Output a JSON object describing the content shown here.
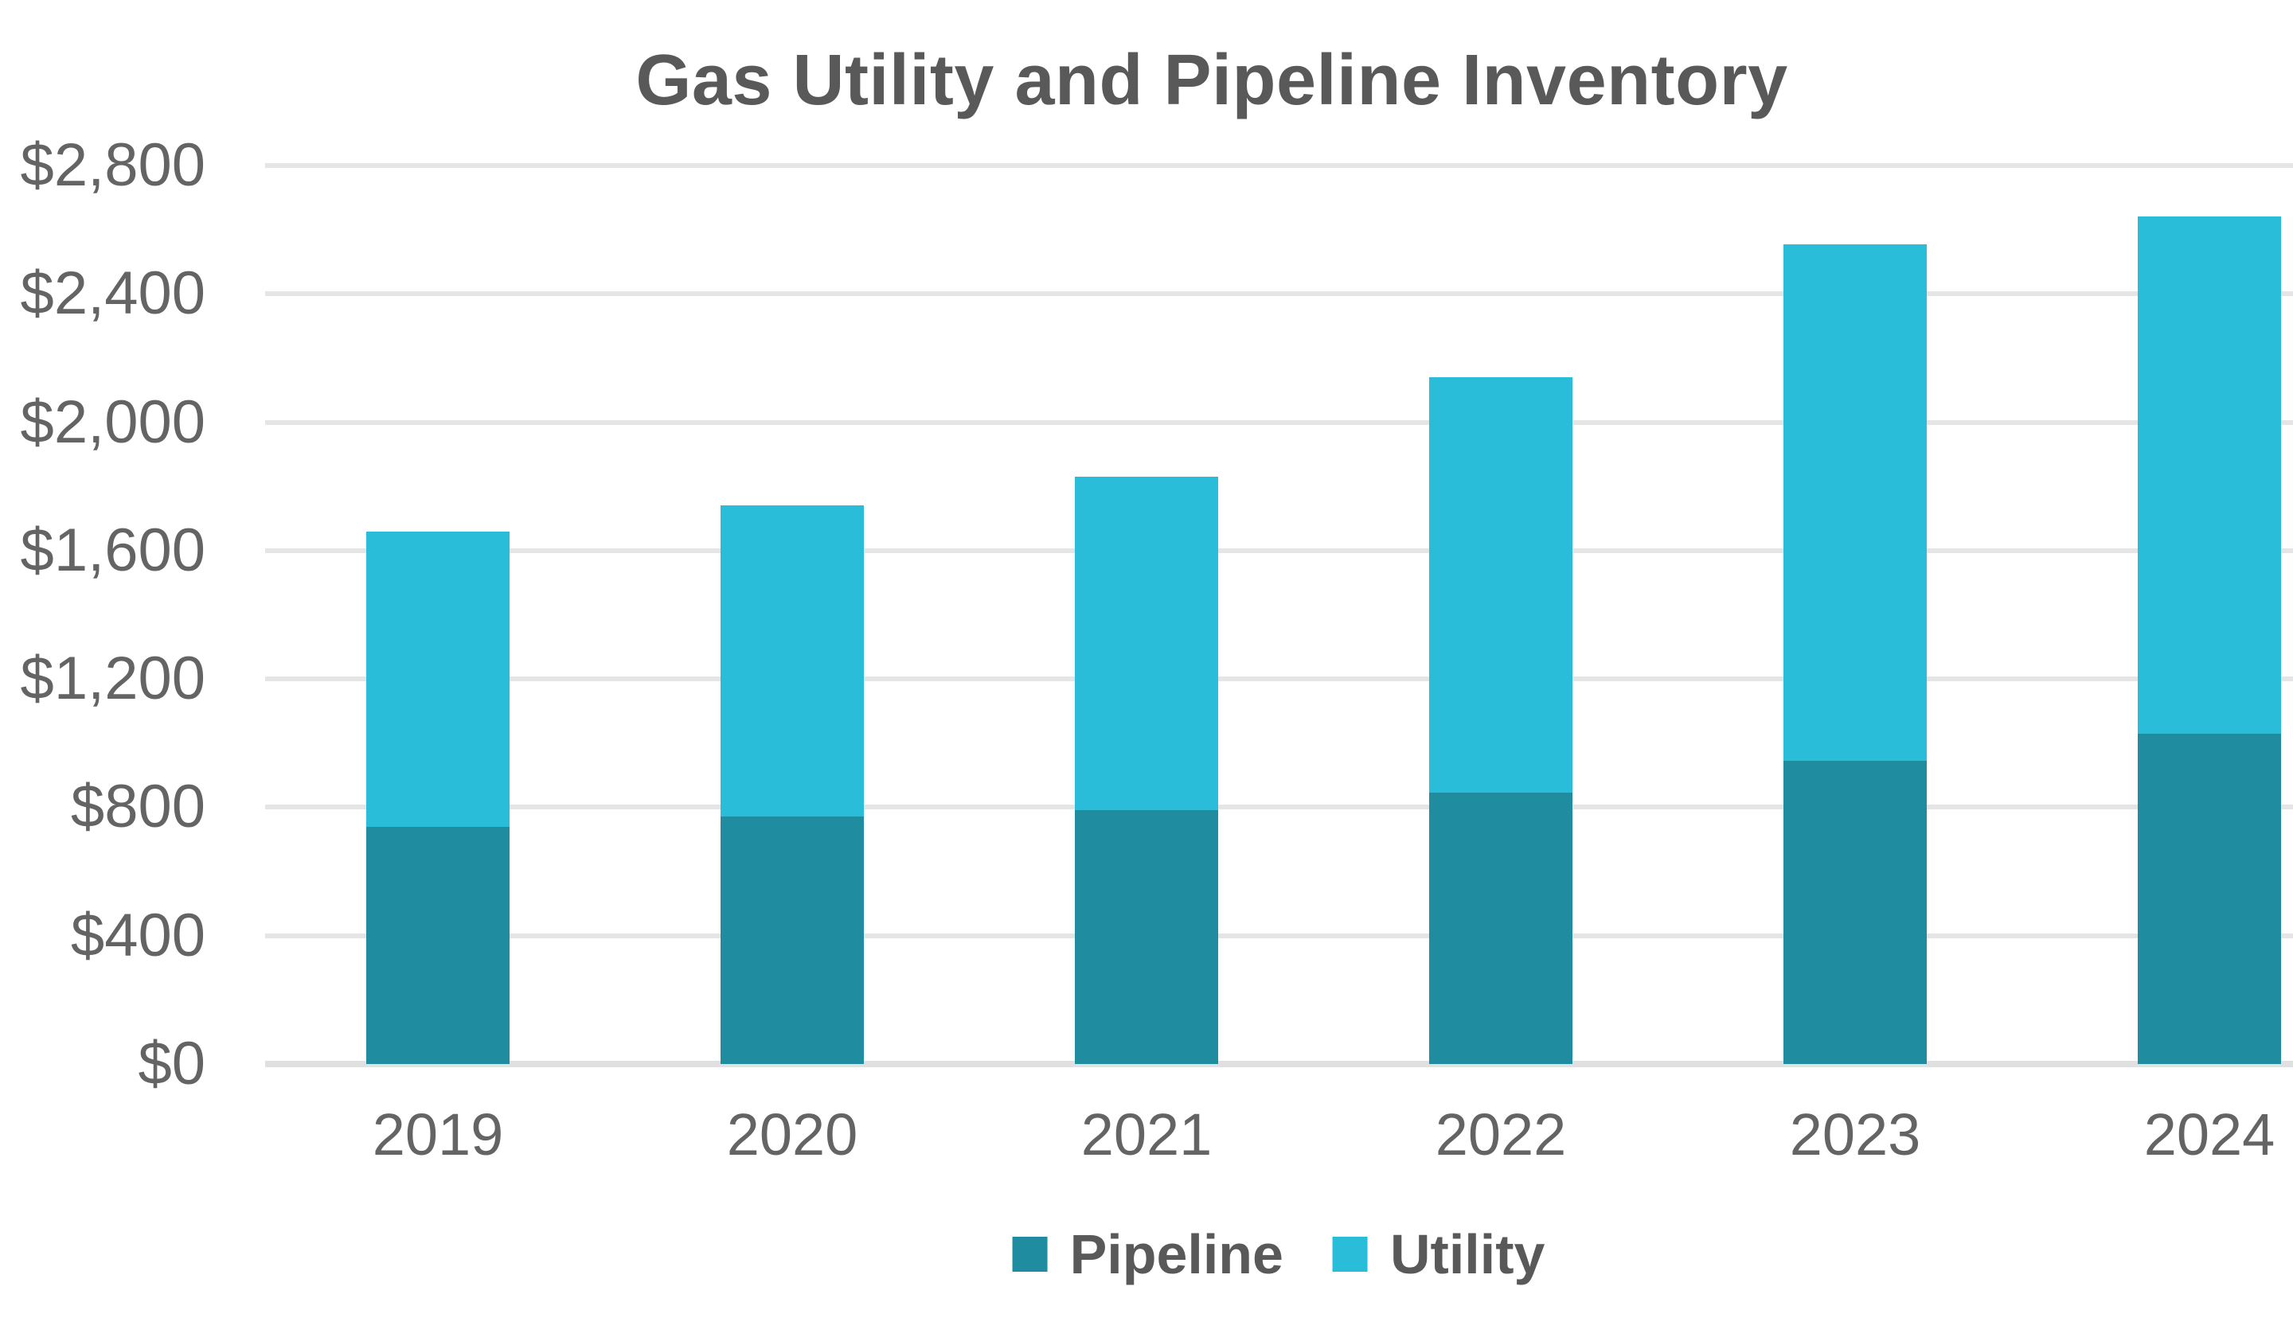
{
  "chart_data": {
    "type": "bar",
    "stacked": true,
    "title": "Gas Utility and Pipeline Inventory",
    "categories": [
      "2019",
      "2020",
      "2021",
      "2022",
      "2023",
      "2024"
    ],
    "series": [
      {
        "name": "Pipeline",
        "color": "#1F8CA0",
        "values": [
          740,
          770,
          790,
          845,
          945,
          1030
        ]
      },
      {
        "name": "Utility",
        "color": "#29BDD9",
        "values": [
          920,
          970,
          1040,
          1295,
          1610,
          1610
        ]
      }
    ],
    "totals": [
      1660,
      1740,
      1830,
      2140,
      2555,
      2640
    ],
    "xlabel": "",
    "ylabel": "",
    "ylim": [
      0,
      2800
    ],
    "ytick_step": 400,
    "yticks": [
      {
        "value": 0,
        "label": "$0"
      },
      {
        "value": 400,
        "label": "$400"
      },
      {
        "value": 800,
        "label": "$800"
      },
      {
        "value": 1200,
        "label": "$1,200"
      },
      {
        "value": 1600,
        "label": "$1,600"
      },
      {
        "value": 2000,
        "label": "$2,000"
      },
      {
        "value": 2400,
        "label": "$2,400"
      },
      {
        "value": 2800,
        "label": "$2,800"
      }
    ],
    "grid": true,
    "legend_position": "bottom"
  },
  "colors": {
    "pipeline": "#1F8CA0",
    "utility": "#29BDD9",
    "title_text": "#595959",
    "axis_text": "#646464",
    "gridline": "#E5E5E5"
  }
}
